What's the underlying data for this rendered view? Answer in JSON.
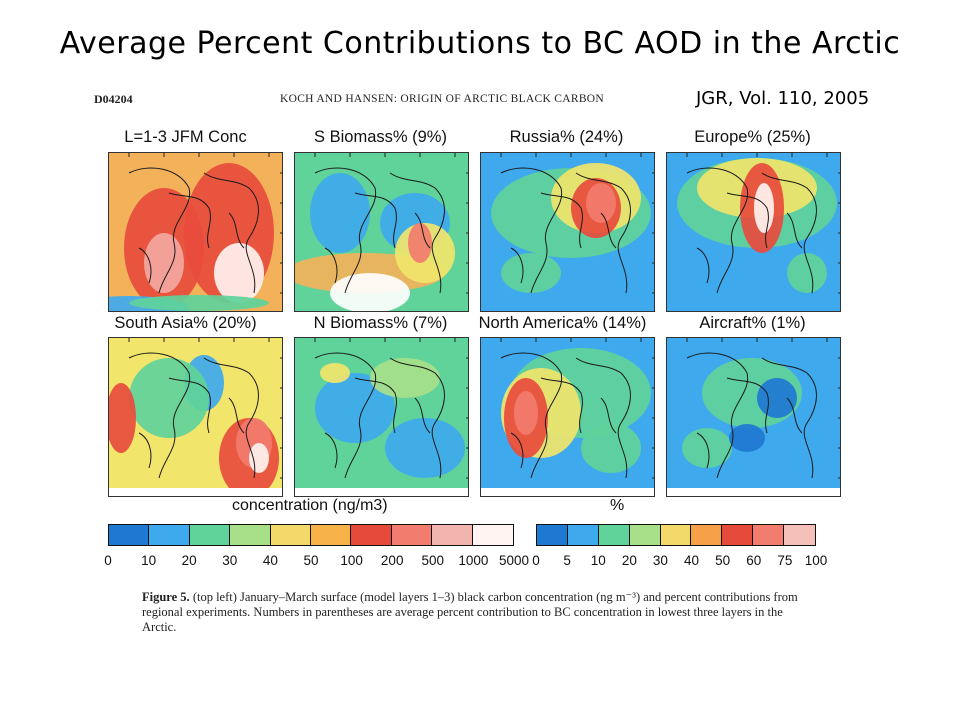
{
  "slide": {
    "title": "Average Percent Contributions to BC AOD in the Arctic",
    "citation": "JGR, Vol. 110, 2005"
  },
  "paper": {
    "page_id": "D04204",
    "running_head": "KOCH AND HANSEN: ORIGIN OF ARCTIC BLACK CARBON"
  },
  "panels": [
    {
      "title": "L=1-3 JFM Conc",
      "theme": "conc"
    },
    {
      "title": "S Biomass% (9%)",
      "theme": "sbio"
    },
    {
      "title": "Russia% (24%)",
      "theme": "russia"
    },
    {
      "title": "Europe% (25%)",
      "theme": "europe"
    },
    {
      "title": "South Asia% (20%)",
      "theme": "sasia"
    },
    {
      "title": "N Biomass% (7%)",
      "theme": "nbio"
    },
    {
      "title": "North America% (14%)",
      "theme": "namer"
    },
    {
      "title": "Aircraft% (1%)",
      "theme": "aircraft"
    }
  ],
  "colorbars": {
    "concentration": {
      "label": "concentration (ng/m3)",
      "ticks": [
        "0",
        "10",
        "20",
        "30",
        "40",
        "50",
        "100",
        "200",
        "500",
        "1000",
        "5000"
      ],
      "colors": [
        "#1f78d1",
        "#3fa9ee",
        "#5fd39a",
        "#a8e08a",
        "#f3d86a",
        "#f7b24a",
        "#e64a3a",
        "#f27c6e",
        "#f2b4ae",
        "#fff4f2"
      ]
    },
    "percent": {
      "label": "%",
      "ticks": [
        "0",
        "5",
        "10",
        "20",
        "30",
        "40",
        "50",
        "60",
        "75",
        "100"
      ],
      "colors": [
        "#1f78d1",
        "#3fa9ee",
        "#5fd39a",
        "#a8e08a",
        "#f3d86a",
        "#f7a04a",
        "#e64a3a",
        "#f27c6e",
        "#f6c0ba"
      ]
    }
  },
  "caption": {
    "label": "Figure 5.",
    "text": "(top left) January–March surface (model layers 1–3) black carbon concentration (ng m⁻³) and percent contributions from regional experiments. Numbers in parentheses are average percent contribution to BC concentration in lowest three layers in the Arctic."
  }
}
